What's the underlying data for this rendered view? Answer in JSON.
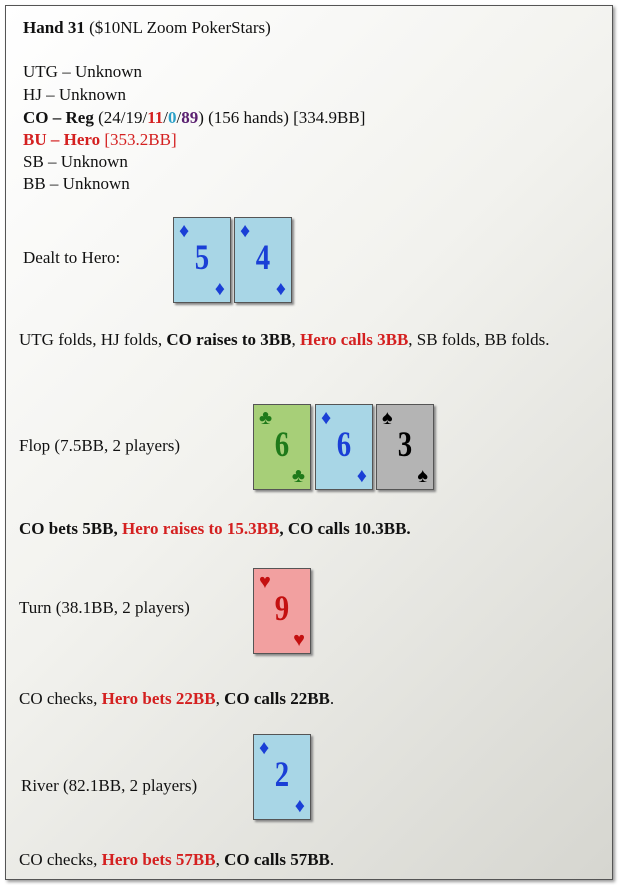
{
  "header": {
    "hand": "Hand 31",
    "site": "($10NL Zoom PokerStars)"
  },
  "players": {
    "utg": "UTG – Unknown",
    "hj": "HJ – Unknown",
    "co": [
      "CO – Reg",
      " (24/19/",
      "11",
      "/",
      "0",
      "/",
      "89",
      ") (156 hands) [334.9BB]"
    ],
    "bu": [
      "BU – Hero",
      " [353.2BB]"
    ],
    "sb": "SB – Unknown",
    "bb": "BB – Unknown"
  },
  "preflop": {
    "label": "Dealt to Hero:",
    "cards": [
      {
        "rank": "5",
        "suit": "♦"
      },
      {
        "rank": "4",
        "suit": "♦"
      }
    ],
    "action": [
      "UTG folds, HJ folds, ",
      "CO raises to 3BB",
      ", ",
      "Hero calls 3BB",
      ", SB folds, BB folds."
    ]
  },
  "flop": {
    "label": "Flop (7.5BB, 2 players)",
    "cards": [
      {
        "rank": "6",
        "suit": "♣"
      },
      {
        "rank": "6",
        "suit": "♦"
      },
      {
        "rank": "3",
        "suit": "♠"
      }
    ],
    "action": [
      "CO bets 5BB",
      ", ",
      "Hero raises to 15.3BB",
      ", ",
      "CO calls 10.3BB",
      "."
    ]
  },
  "turn": {
    "label": "Turn (38.1BB, 2 players)",
    "cards": [
      {
        "rank": "9",
        "suit": "♥"
      }
    ],
    "action": [
      "CO checks, ",
      "Hero bets 22BB",
      ", ",
      "CO calls 22BB",
      "."
    ]
  },
  "river": {
    "label": "River (82.1BB, 2 players)",
    "cards": [
      {
        "rank": "2",
        "suit": "♦"
      }
    ],
    "action": [
      "CO checks, ",
      "Hero bets 57BB",
      ", ",
      "CO calls 57BB",
      "."
    ]
  }
}
